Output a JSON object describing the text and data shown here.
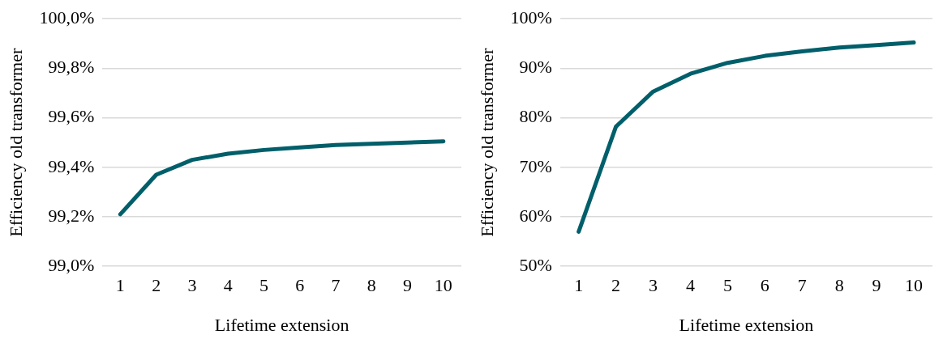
{
  "chart_data": [
    {
      "type": "line",
      "xlabel": "Lifetime extension",
      "ylabel": "Efficiency old transformer",
      "categories": [
        "1",
        "2",
        "3",
        "4",
        "5",
        "6",
        "7",
        "8",
        "9",
        "10"
      ],
      "series": [
        {
          "color": "#005f6a",
          "values": [
            99.21,
            99.37,
            99.43,
            99.455,
            99.47,
            99.48,
            99.49,
            99.495,
            99.5,
            99.505
          ]
        }
      ],
      "ylim": [
        99.0,
        100.0
      ],
      "yticks": [
        {
          "value": 99.0,
          "label": "99,0%"
        },
        {
          "value": 99.2,
          "label": "99,2%"
        },
        {
          "value": 99.4,
          "label": "99,4%"
        },
        {
          "value": 99.6,
          "label": "99,6%"
        },
        {
          "value": 99.8,
          "label": "99,8%"
        },
        {
          "value": 100.0,
          "label": "100,0%"
        }
      ],
      "grid": "y",
      "legend": false,
      "marker": "none",
      "line_style": "solid"
    },
    {
      "type": "line",
      "xlabel": "Lifetime extension",
      "ylabel": "Efficiency old transformer",
      "categories": [
        "1",
        "2",
        "3",
        "4",
        "5",
        "6",
        "7",
        "8",
        "9",
        "10"
      ],
      "series": [
        {
          "color": "#005f6a",
          "values": [
            57.0,
            78.2,
            85.3,
            88.9,
            91.1,
            92.5,
            93.4,
            94.2,
            94.7,
            95.2
          ]
        }
      ],
      "ylim": [
        50,
        100
      ],
      "yticks": [
        {
          "value": 50,
          "label": "50%"
        },
        {
          "value": 60,
          "label": "60%"
        },
        {
          "value": 70,
          "label": "70%"
        },
        {
          "value": 80,
          "label": "80%"
        },
        {
          "value": 90,
          "label": "90%"
        },
        {
          "value": 100,
          "label": "100%"
        }
      ],
      "grid": "y",
      "legend": false,
      "marker": "none",
      "line_style": "solid"
    }
  ]
}
